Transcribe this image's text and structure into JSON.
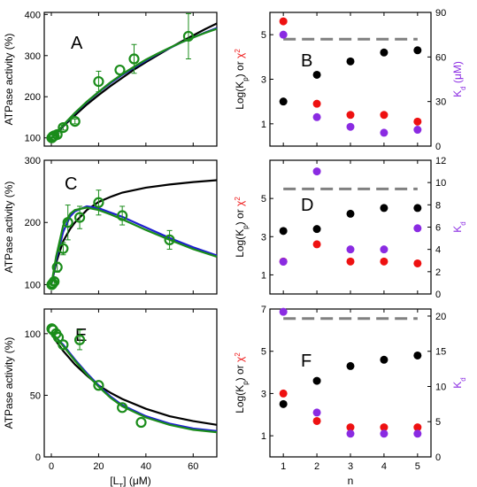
{
  "chart_data": [
    {
      "panel": "A",
      "type": "line",
      "ylabel": "ATPase activity (%)",
      "xlim": [
        -3,
        70
      ],
      "ylim": [
        80,
        405
      ],
      "yticks": [
        100,
        200,
        300,
        400
      ],
      "xticks": [
        0,
        20,
        40,
        60
      ],
      "series": [
        {
          "color": "#000000",
          "x": [
            0,
            2,
            5,
            10,
            15,
            20,
            25,
            30,
            35,
            40,
            45,
            50,
            55,
            60,
            65,
            70
          ],
          "y": [
            100,
            110,
            128,
            155,
            181,
            204,
            226,
            246,
            266,
            284,
            301,
            318,
            334,
            349,
            364,
            378
          ]
        },
        {
          "color": "#1f1fd0",
          "x": [
            0,
            2,
            5,
            10,
            15,
            20,
            25,
            30,
            35,
            40,
            45,
            50,
            55,
            60,
            65,
            70
          ],
          "y": [
            100,
            111,
            130,
            160,
            187,
            211,
            233,
            253,
            271,
            288,
            304,
            318,
            332,
            344,
            356,
            367
          ]
        },
        {
          "color": "#1a8c1a",
          "x": [
            0,
            2,
            5,
            10,
            15,
            20,
            25,
            30,
            35,
            40,
            45,
            50,
            55,
            60,
            65,
            70
          ],
          "y": [
            100,
            111,
            131,
            161,
            188,
            212,
            235,
            255,
            273,
            290,
            305,
            319,
            332,
            344,
            355,
            365
          ]
        }
      ],
      "points": {
        "x": [
          0.2,
          0.6,
          1.2,
          2.5,
          5,
          10,
          20,
          29,
          35,
          58
        ],
        "y": [
          100,
          103,
          105,
          108,
          125,
          140,
          237,
          265,
          292,
          347
        ],
        "err": [
          0,
          4,
          4,
          4,
          6,
          6,
          25,
          0,
          35,
          55
        ]
      }
    },
    {
      "panel": "B",
      "type": "scatter",
      "ylabel": "Log(K_p) or χ²",
      "y2label": "K_d (μM)",
      "xlabel": "",
      "xlim": [
        0.6,
        5.4
      ],
      "ylim": [
        0,
        6
      ],
      "y2lim": [
        0,
        90
      ],
      "yticks": [
        1,
        3,
        5
      ],
      "y2ticks": [
        0,
        30,
        60,
        90
      ],
      "xticks": [
        1,
        2,
        3,
        4,
        5
      ],
      "dashed_y": 4.8,
      "black_logKp": [
        2.0,
        3.2,
        3.8,
        4.2,
        4.3
      ],
      "red_chi2": [
        5.6,
        1.9,
        1.4,
        1.4,
        1.1
      ],
      "purple_Kd": [
        75.0,
        19.5,
        13.0,
        9.0,
        11.0
      ]
    },
    {
      "panel": "C",
      "type": "line",
      "ylabel": "ATPase activity (%)",
      "xlim": [
        -3,
        70
      ],
      "ylim": [
        85,
        300
      ],
      "yticks": [
        100,
        200,
        300
      ],
      "xticks": [
        0,
        20,
        40,
        60
      ],
      "series": [
        {
          "color": "#000000",
          "x": [
            0,
            2,
            5,
            8,
            10,
            15,
            20,
            25,
            30,
            40,
            50,
            60,
            70
          ],
          "y": [
            100,
            135,
            170,
            190,
            200,
            220,
            233,
            241,
            248,
            256,
            261,
            265,
            268
          ]
        },
        {
          "color": "#1f1fd0",
          "x": [
            0,
            2,
            5,
            8,
            10,
            15,
            20,
            25,
            30,
            40,
            50,
            60,
            70
          ],
          "y": [
            100,
            140,
            185,
            210,
            218,
            226,
            223,
            216,
            209,
            192,
            175,
            160,
            147
          ]
        },
        {
          "color": "#1a8c1a",
          "x": [
            0,
            2,
            5,
            8,
            10,
            15,
            20,
            25,
            30,
            40,
            50,
            60,
            70
          ],
          "y": [
            100,
            145,
            195,
            214,
            220,
            224,
            220,
            213,
            205,
            188,
            172,
            157,
            145
          ]
        }
      ],
      "points": {
        "x": [
          0.2,
          0.6,
          1.2,
          2.5,
          5,
          7,
          12,
          20,
          30,
          50
        ],
        "y": [
          100,
          102,
          105,
          128,
          158,
          200,
          208,
          232,
          211,
          172
        ],
        "err": [
          0,
          0,
          5,
          8,
          10,
          28,
          18,
          20,
          15,
          15
        ]
      }
    },
    {
      "panel": "D",
      "type": "scatter",
      "ylabel": "Log(K_p) or χ²",
      "y2label": "K_d",
      "xlabel": "",
      "xlim": [
        0.6,
        5.4
      ],
      "ylim": [
        0,
        7
      ],
      "y2lim": [
        0,
        12
      ],
      "yticks": [
        1,
        3,
        5
      ],
      "y2ticks": [
        0,
        2,
        4,
        6,
        8,
        10,
        12
      ],
      "xticks": [
        1,
        2,
        3,
        4,
        5
      ],
      "dashed_y": 5.5,
      "black_logKp": [
        3.3,
        3.4,
        4.2,
        4.5,
        4.5
      ],
      "red_chi2": [
        1.7,
        2.6,
        1.7,
        1.7,
        1.6
      ],
      "purple_Kd": [
        2.9,
        11.0,
        4.0,
        4.0,
        5.9
      ]
    },
    {
      "panel": "E",
      "type": "line",
      "ylabel": "ATPase activity (%)",
      "xlabel": "[L_T] (μM)",
      "xlim": [
        -3,
        70
      ],
      "ylim": [
        0,
        120
      ],
      "yticks": [
        0,
        50,
        100
      ],
      "xticks": [
        0,
        20,
        40,
        60
      ],
      "series": [
        {
          "color": "#000000",
          "x": [
            0,
            2,
            5,
            10,
            15,
            20,
            25,
            30,
            40,
            50,
            60,
            70
          ],
          "y": [
            100,
            94,
            86,
            75,
            66,
            58,
            52,
            47,
            39,
            33,
            29,
            26
          ]
        },
        {
          "color": "#1f1fd0",
          "x": [
            0,
            2,
            5,
            10,
            15,
            20,
            25,
            30,
            40,
            50,
            60,
            70
          ],
          "y": [
            100,
            97,
            91,
            79,
            68,
            58,
            49,
            42,
            33,
            27,
            23,
            21
          ]
        },
        {
          "color": "#1a8c1a",
          "x": [
            0,
            2,
            5,
            10,
            15,
            20,
            25,
            30,
            40,
            50,
            60,
            70
          ],
          "y": [
            100,
            97,
            90,
            78,
            67,
            57,
            48,
            41,
            32,
            26,
            22,
            20
          ]
        }
      ],
      "points": {
        "x": [
          0.2,
          0.7,
          2,
          3,
          5,
          12,
          20,
          30,
          38
        ],
        "y": [
          104,
          103,
          100,
          97,
          91,
          95,
          58,
          40,
          28
        ],
        "err": [
          0,
          0,
          0,
          0,
          0,
          8,
          0,
          0,
          0
        ]
      }
    },
    {
      "panel": "F",
      "type": "scatter",
      "ylabel": "Log(K_p) or χ²",
      "y2label": "K_d",
      "xlabel": "n",
      "xlim": [
        0.6,
        5.4
      ],
      "ylim": [
        0,
        7
      ],
      "y2lim": [
        0,
        21
      ],
      "yticks": [
        1,
        3,
        5,
        7
      ],
      "y2ticks": [
        0,
        5,
        10,
        15,
        20
      ],
      "xticks": [
        1,
        2,
        3,
        4,
        5
      ],
      "dashed_y": 6.55,
      "black_logKp": [
        2.5,
        3.6,
        4.3,
        4.6,
        4.8
      ],
      "red_chi2": [
        3.0,
        1.7,
        1.4,
        1.4,
        1.4
      ],
      "purple_Kd": [
        20.6,
        6.3,
        3.3,
        3.3,
        3.3
      ]
    }
  ]
}
